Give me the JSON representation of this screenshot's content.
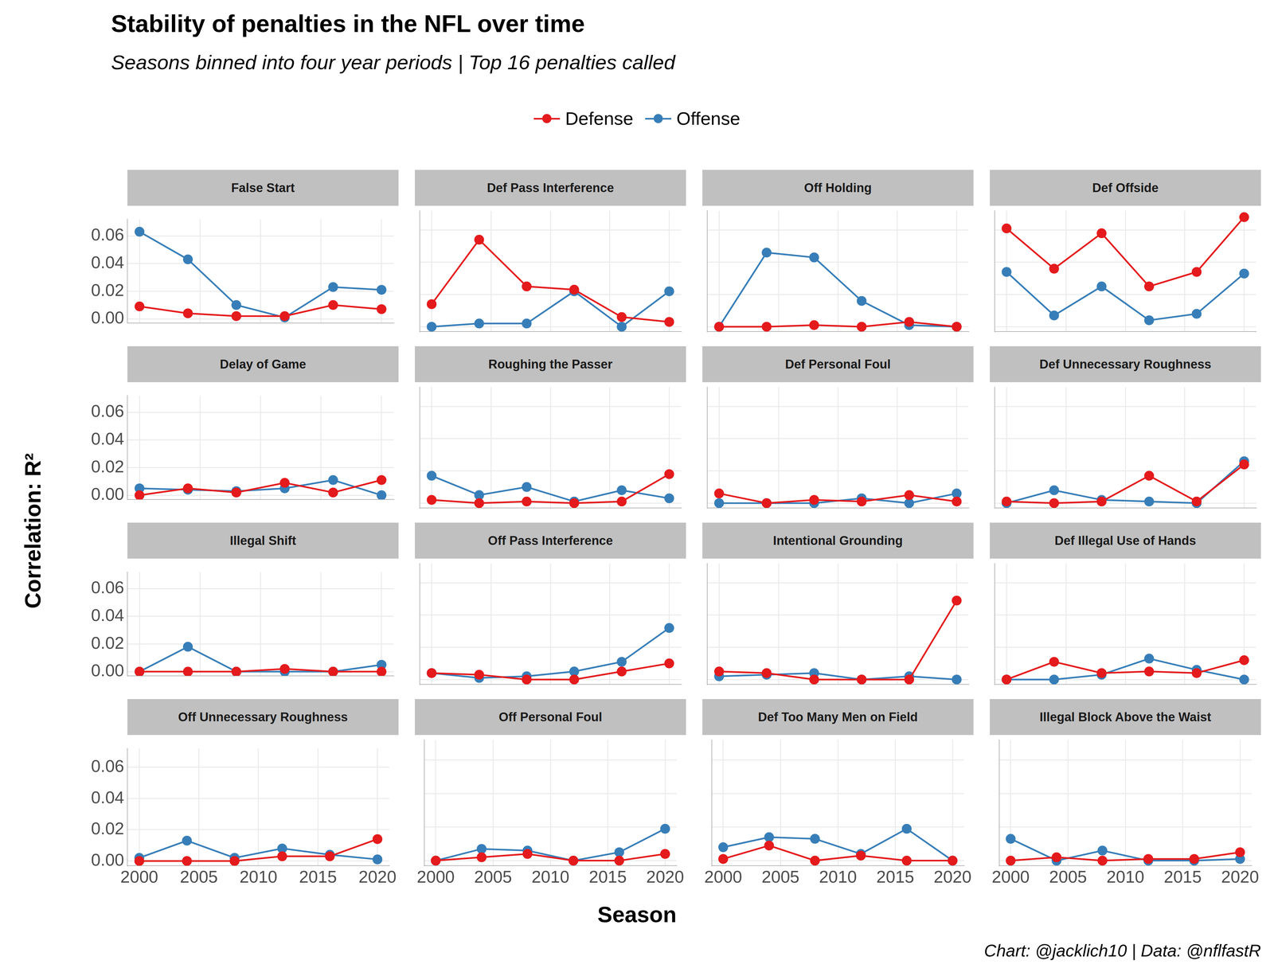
{
  "chart_data": {
    "type": "line",
    "title": "Stability of penalties in the NFL over time",
    "subtitle": "Seasons binned into four year periods | Top 16 penalties called",
    "x_label": "Season",
    "y_label": "Correlation: R²",
    "caption": "Chart: @jacklich10 | Data: @nflfastR",
    "legend": "top",
    "grid": true,
    "marker": "circle",
    "x": [
      2000,
      2004,
      2008,
      2012,
      2016,
      2020
    ],
    "xlim": [
      1999,
      2021
    ],
    "xticks": [
      2000,
      2005,
      2010,
      2015,
      2020
    ],
    "ylim": [
      -0.003,
      0.072
    ],
    "yticks": [
      {
        "value": 0,
        "label": "0.00"
      },
      {
        "value": 0.02,
        "label": "0.02"
      },
      {
        "value": 0.04,
        "label": "0.04"
      },
      {
        "value": 0.06,
        "label": "0.06"
      }
    ],
    "panels": [
      {
        "title": "False Start",
        "series": [
          {
            "name": "Defense",
            "color": "#e41a1c",
            "values": [
              0.009,
              0.004,
              0.002,
              0.002,
              0.01,
              0.007
            ]
          },
          {
            "name": "Offense",
            "color": "#377eb8",
            "values": [
              0.063,
              0.043,
              0.01,
              0.001,
              0.023,
              0.021
            ]
          }
        ]
      },
      {
        "title": "Def Pass Interference",
        "series": [
          {
            "name": "Defense",
            "color": "#e41a1c",
            "values": [
              0.014,
              0.054,
              0.025,
              0.023,
              0.006,
              0.003
            ]
          },
          {
            "name": "Offense",
            "color": "#377eb8",
            "values": [
              0.0,
              0.002,
              0.002,
              0.022,
              0.0,
              0.022
            ]
          }
        ]
      },
      {
        "title": "Off Holding",
        "series": [
          {
            "name": "Defense",
            "color": "#e41a1c",
            "values": [
              0.0,
              0.0,
              0.001,
              0.0,
              0.003,
              0.0
            ]
          },
          {
            "name": "Offense",
            "color": "#377eb8",
            "values": [
              0.0,
              0.046,
              0.043,
              0.016,
              0.001,
              0.0
            ]
          }
        ]
      },
      {
        "title": "Def Offside",
        "series": [
          {
            "name": "Defense",
            "color": "#e41a1c",
            "values": [
              0.061,
              0.036,
              0.058,
              0.025,
              0.034,
              0.068
            ]
          },
          {
            "name": "Offense",
            "color": "#377eb8",
            "values": [
              0.034,
              0.007,
              0.025,
              0.004,
              0.008,
              0.033
            ]
          }
        ]
      },
      {
        "title": "Delay of Game",
        "series": [
          {
            "name": "Defense",
            "color": "#e41a1c",
            "values": [
              0.0,
              0.005,
              0.002,
              0.009,
              0.002,
              0.011
            ]
          },
          {
            "name": "Offense",
            "color": "#377eb8",
            "values": [
              0.005,
              0.004,
              0.003,
              0.005,
              0.011,
              0.0
            ]
          }
        ]
      },
      {
        "title": "Roughing the Passer",
        "series": [
          {
            "name": "Defense",
            "color": "#e41a1c",
            "values": [
              0.002,
              0.0,
              0.001,
              0.0,
              0.001,
              0.018
            ]
          },
          {
            "name": "Offense",
            "color": "#377eb8",
            "values": [
              0.017,
              0.005,
              0.01,
              0.001,
              0.008,
              0.003
            ]
          }
        ]
      },
      {
        "title": "Def Personal Foul",
        "series": [
          {
            "name": "Defense",
            "color": "#e41a1c",
            "values": [
              0.006,
              0.0,
              0.002,
              0.001,
              0.005,
              0.001
            ]
          },
          {
            "name": "Offense",
            "color": "#377eb8",
            "values": [
              0.0,
              0.0,
              0.0,
              0.003,
              0.0,
              0.006
            ]
          }
        ]
      },
      {
        "title": "Def Unnecessary Roughness",
        "series": [
          {
            "name": "Defense",
            "color": "#e41a1c",
            "values": [
              0.001,
              0.0,
              0.001,
              0.017,
              0.001,
              0.024
            ]
          },
          {
            "name": "Offense",
            "color": "#377eb8",
            "values": [
              0.0,
              0.008,
              0.002,
              0.001,
              0.0,
              0.026
            ]
          }
        ]
      },
      {
        "title": "Illegal Shift",
        "series": [
          {
            "name": "Defense",
            "color": "#e41a1c",
            "values": [
              0.0,
              0.0,
              0.0,
              0.002,
              0.0,
              0.0
            ]
          },
          {
            "name": "Offense",
            "color": "#377eb8",
            "values": [
              0.0,
              0.018,
              0.0,
              0.0,
              0.0,
              0.005
            ]
          }
        ]
      },
      {
        "title": "Off Pass Interference",
        "series": [
          {
            "name": "Defense",
            "color": "#e41a1c",
            "values": [
              0.004,
              0.003,
              0.0,
              0.0,
              0.005,
              0.01
            ]
          },
          {
            "name": "Offense",
            "color": "#377eb8",
            "values": [
              0.004,
              0.001,
              0.002,
              0.005,
              0.011,
              0.032
            ]
          }
        ]
      },
      {
        "title": "Intentional Grounding",
        "series": [
          {
            "name": "Defense",
            "color": "#e41a1c",
            "values": [
              0.005,
              0.004,
              0.0,
              0.0,
              0.0,
              0.049
            ]
          },
          {
            "name": "Offense",
            "color": "#377eb8",
            "values": [
              0.002,
              0.003,
              0.004,
              0.0,
              0.002,
              0.0
            ]
          }
        ]
      },
      {
        "title": "Def Illegal Use of Hands",
        "series": [
          {
            "name": "Defense",
            "color": "#e41a1c",
            "values": [
              0.0,
              0.011,
              0.004,
              0.005,
              0.004,
              0.012
            ]
          },
          {
            "name": "Offense",
            "color": "#377eb8",
            "values": [
              0.0,
              0.0,
              0.003,
              0.013,
              0.006,
              0.0
            ]
          }
        ]
      },
      {
        "title": "Off Unnecessary Roughness",
        "series": [
          {
            "name": "Defense",
            "color": "#e41a1c",
            "values": [
              0.0,
              0.0,
              0.0,
              0.003,
              0.003,
              0.014
            ]
          },
          {
            "name": "Offense",
            "color": "#377eb8",
            "values": [
              0.002,
              0.013,
              0.002,
              0.008,
              0.004,
              0.001
            ]
          }
        ]
      },
      {
        "title": "Off Personal Foul",
        "series": [
          {
            "name": "Defense",
            "color": "#e41a1c",
            "values": [
              0.0,
              0.002,
              0.004,
              0.0,
              0.0,
              0.004
            ]
          },
          {
            "name": "Offense",
            "color": "#377eb8",
            "values": [
              0.0,
              0.007,
              0.006,
              0.0,
              0.005,
              0.019
            ]
          }
        ]
      },
      {
        "title": "Def Too Many Men on Field",
        "series": [
          {
            "name": "Defense",
            "color": "#e41a1c",
            "values": [
              0.001,
              0.009,
              0.0,
              0.003,
              0.0,
              0.0
            ]
          },
          {
            "name": "Offense",
            "color": "#377eb8",
            "values": [
              0.008,
              0.014,
              0.013,
              0.004,
              0.019,
              0.0
            ]
          }
        ]
      },
      {
        "title": "Illegal Block Above the Waist",
        "series": [
          {
            "name": "Defense",
            "color": "#e41a1c",
            "values": [
              0.0,
              0.002,
              0.0,
              0.001,
              0.001,
              0.005
            ]
          },
          {
            "name": "Offense",
            "color": "#377eb8",
            "values": [
              0.013,
              0.0,
              0.006,
              0.0,
              0.0,
              0.001
            ]
          }
        ]
      }
    ]
  }
}
